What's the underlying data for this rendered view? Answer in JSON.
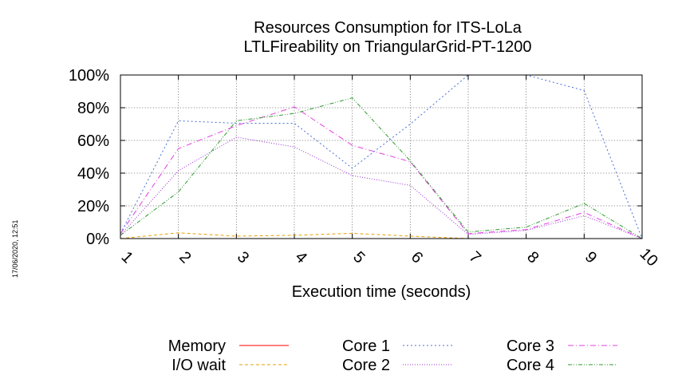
{
  "timestamp": "17/06/2020, 12:51",
  "chart_data": {
    "type": "line",
    "title": "Resources Consumption for ITS-LoLa",
    "subtitle": "LTLFireability on TriangularGrid-PT-1200",
    "xlabel": "Execution time (seconds)",
    "ylabel": "",
    "x": [
      1,
      2,
      3,
      4,
      5,
      6,
      7,
      8,
      9,
      10
    ],
    "x_tick_labels": [
      "1",
      "2",
      "3",
      "4",
      "5",
      "6",
      "7",
      "8",
      "9",
      "10"
    ],
    "y_tick_labels": [
      "0%",
      "20%",
      "40%",
      "60%",
      "80%",
      "100%"
    ],
    "y_ticks": [
      0,
      20,
      40,
      60,
      80,
      100
    ],
    "xlim": [
      1,
      10
    ],
    "ylim": [
      0,
      100
    ],
    "grid": true,
    "legend_position": "bottom",
    "series": [
      {
        "name": "Memory",
        "color": "#ff0000",
        "dash": "none",
        "values": [
          0,
          0,
          0,
          0,
          0,
          0,
          0,
          0,
          0,
          0
        ]
      },
      {
        "name": "I/O wait",
        "color": "#e6a000",
        "dash": "4 3",
        "values": [
          0,
          3.5,
          1.5,
          2,
          3.2,
          1.5,
          0,
          0,
          0,
          0
        ]
      },
      {
        "name": "Core 1",
        "color": "#4a6fd6",
        "dash": "2 3",
        "values": [
          3,
          72,
          70.5,
          70.5,
          43,
          70,
          100,
          100,
          90.5,
          0
        ]
      },
      {
        "name": "Core 2",
        "color": "#9b30d9",
        "dash": "1 2",
        "values": [
          2,
          41.5,
          62,
          56,
          38.5,
          32.5,
          2.5,
          5,
          14,
          0
        ]
      },
      {
        "name": "Core 3",
        "color": "#e040e0",
        "dash": "7 3 1 3",
        "values": [
          3,
          55,
          69,
          80.5,
          57,
          47,
          3,
          5.5,
          16,
          0
        ]
      },
      {
        "name": "Core 4",
        "color": "#2e9a2e",
        "dash": "5 2 1 2 1 2",
        "values": [
          2,
          28.5,
          72,
          76.5,
          86,
          47.5,
          4,
          7,
          21.5,
          0
        ]
      }
    ]
  }
}
